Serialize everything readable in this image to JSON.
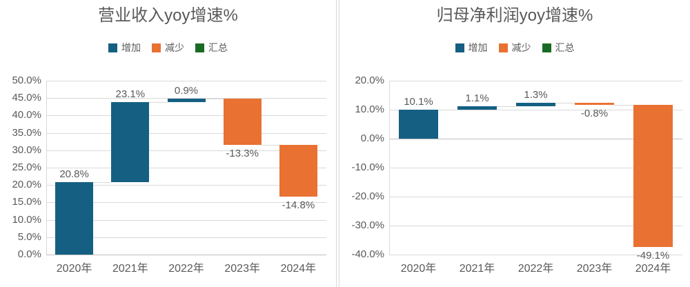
{
  "colors": {
    "increase": "#156082",
    "decrease": "#E97132",
    "total": "#196B24",
    "gridline": "#D9D9D9",
    "axis_line": "#BFBFBF",
    "connector": "#D9D9D9",
    "text": "#595959",
    "divider": "#D9D9D9",
    "background": "#FFFFFF"
  },
  "chart_data": [
    {
      "type": "waterfall",
      "title": "营业收入yoy增速%",
      "legend": [
        {
          "label": "增加",
          "role": "increase"
        },
        {
          "label": "减少",
          "role": "decrease"
        },
        {
          "label": "汇总",
          "role": "total"
        }
      ],
      "legend_position": "top",
      "grid": true,
      "categories": [
        "2020年",
        "2021年",
        "2022年",
        "2023年",
        "2024年"
      ],
      "values": [
        20.8,
        23.1,
        0.9,
        -13.3,
        -14.8
      ],
      "cumulative": [
        20.8,
        43.9,
        44.8,
        31.5,
        16.7
      ],
      "data_labels": [
        "20.8%",
        "23.1%",
        "0.9%",
        "-13.3%",
        "-14.8%"
      ],
      "ylim": [
        0,
        50
      ],
      "ytick_step": 5,
      "ytick_labels": [
        "0.0%",
        "5.0%",
        "10.0%",
        "15.0%",
        "20.0%",
        "25.0%",
        "30.0%",
        "35.0%",
        "40.0%",
        "45.0%",
        "50.0%"
      ]
    },
    {
      "type": "waterfall",
      "title": "归母净利润yoy增速%",
      "legend": [
        {
          "label": "增加",
          "role": "increase"
        },
        {
          "label": "减少",
          "role": "decrease"
        },
        {
          "label": "汇总",
          "role": "total"
        }
      ],
      "legend_position": "top",
      "grid": true,
      "categories": [
        "2020年",
        "2021年",
        "2022年",
        "2023年",
        "2024年"
      ],
      "values": [
        10.1,
        1.1,
        1.3,
        -0.8,
        -49.1
      ],
      "cumulative": [
        10.1,
        11.2,
        12.5,
        11.7,
        -37.4
      ],
      "data_labels": [
        "10.1%",
        "1.1%",
        "1.3%",
        "-0.8%",
        "-49.1%"
      ],
      "ylim": [
        -40,
        20
      ],
      "ytick_step": 10,
      "ytick_labels": [
        "-40.0%",
        "-30.0%",
        "-20.0%",
        "-10.0%",
        "0.0%",
        "10.0%",
        "20.0%"
      ]
    }
  ]
}
